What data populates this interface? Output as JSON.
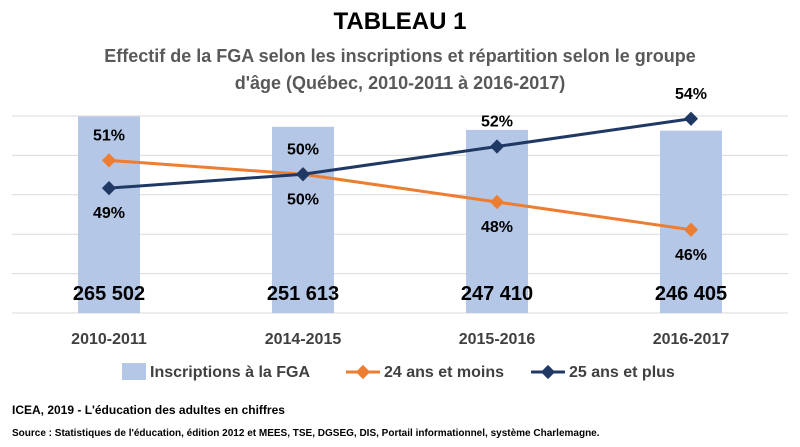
{
  "header": {
    "title": "TABLEAU 1",
    "subtitle": "Effectif de la FGA selon les inscriptions et répartition selon le groupe d'âge (Québec, 2010-2011 à 2016-2017)"
  },
  "chart_data": {
    "type": "bar",
    "title": "TABLEAU 1",
    "subtitle": "Effectif de la FGA selon les inscriptions et répartition selon le groupe d'âge (Québec, 2010-2011 à 2016-2017)",
    "categories": [
      "2010-2011",
      "2014-2015",
      "2015-2016",
      "2016-2017"
    ],
    "series": [
      {
        "name": "Inscriptions à la FGA",
        "type": "bar",
        "values": [
          265502,
          251613,
          247410,
          246405
        ],
        "labels": [
          "265 502",
          "251 613",
          "247 410",
          "246 405"
        ],
        "color": "#B4C7E7"
      },
      {
        "name": "24 ans et moins",
        "type": "line",
        "values": [
          51,
          50,
          48,
          46
        ],
        "labels": [
          "51%",
          "50%",
          "48%",
          "46%"
        ],
        "color": "#ED7D31"
      },
      {
        "name": "25 ans et plus",
        "type": "line",
        "values": [
          49,
          50,
          52,
          54
        ],
        "labels": [
          "49%",
          "50%",
          "52%",
          "54%"
        ],
        "color": "#1F3864"
      }
    ],
    "grid": true,
    "legend": "bottom"
  },
  "footer": {
    "source_title": "ICEA, 2019 - L'éducation des adultes en chiffres",
    "source_detail": "Source : Statistiques de l'éducation, édition 2012 et MEES, TSE, DGSEG, DIS, Portail informationnel,  système Charlemagne."
  }
}
